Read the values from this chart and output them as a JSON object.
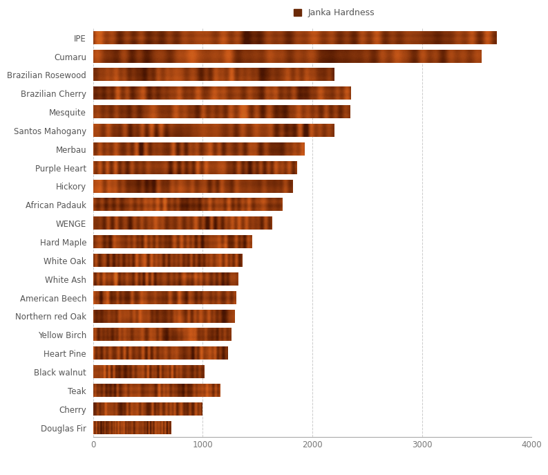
{
  "legend_label": "Janka Hardness",
  "categories": [
    "IPE",
    "Cumaru",
    "Brazilian Rosewood",
    "Brazilian Cherry",
    "Mesquite",
    "Santos Mahogany",
    "Merbau",
    "Purple Heart",
    "Hickory",
    "African Padauk",
    "WENGE",
    "Hard Maple",
    "White Oak",
    "White Ash",
    "American Beech",
    "Northern red Oak",
    "Yellow Birch",
    "Heart Pine",
    "Black walnut",
    "Teak",
    "Cherry",
    "Douglas Fir"
  ],
  "values": [
    3680,
    3540,
    2200,
    2350,
    2345,
    2200,
    1925,
    1860,
    1820,
    1725,
    1630,
    1450,
    1360,
    1320,
    1300,
    1290,
    1260,
    1225,
    1010,
    1155,
    995,
    710
  ],
  "xlim": [
    0,
    4000
  ],
  "xticks": [
    0,
    1000,
    2000,
    3000,
    4000
  ],
  "grid_color": "#cccccc",
  "background_color": "#ffffff",
  "bar_height": 0.68,
  "label_fontsize": 8.5,
  "tick_fontsize": 8.5,
  "legend_fontsize": 9,
  "legend_marker_color": "#6b2a08",
  "base_r": 0.55,
  "base_g": 0.22,
  "base_b": 0.05
}
